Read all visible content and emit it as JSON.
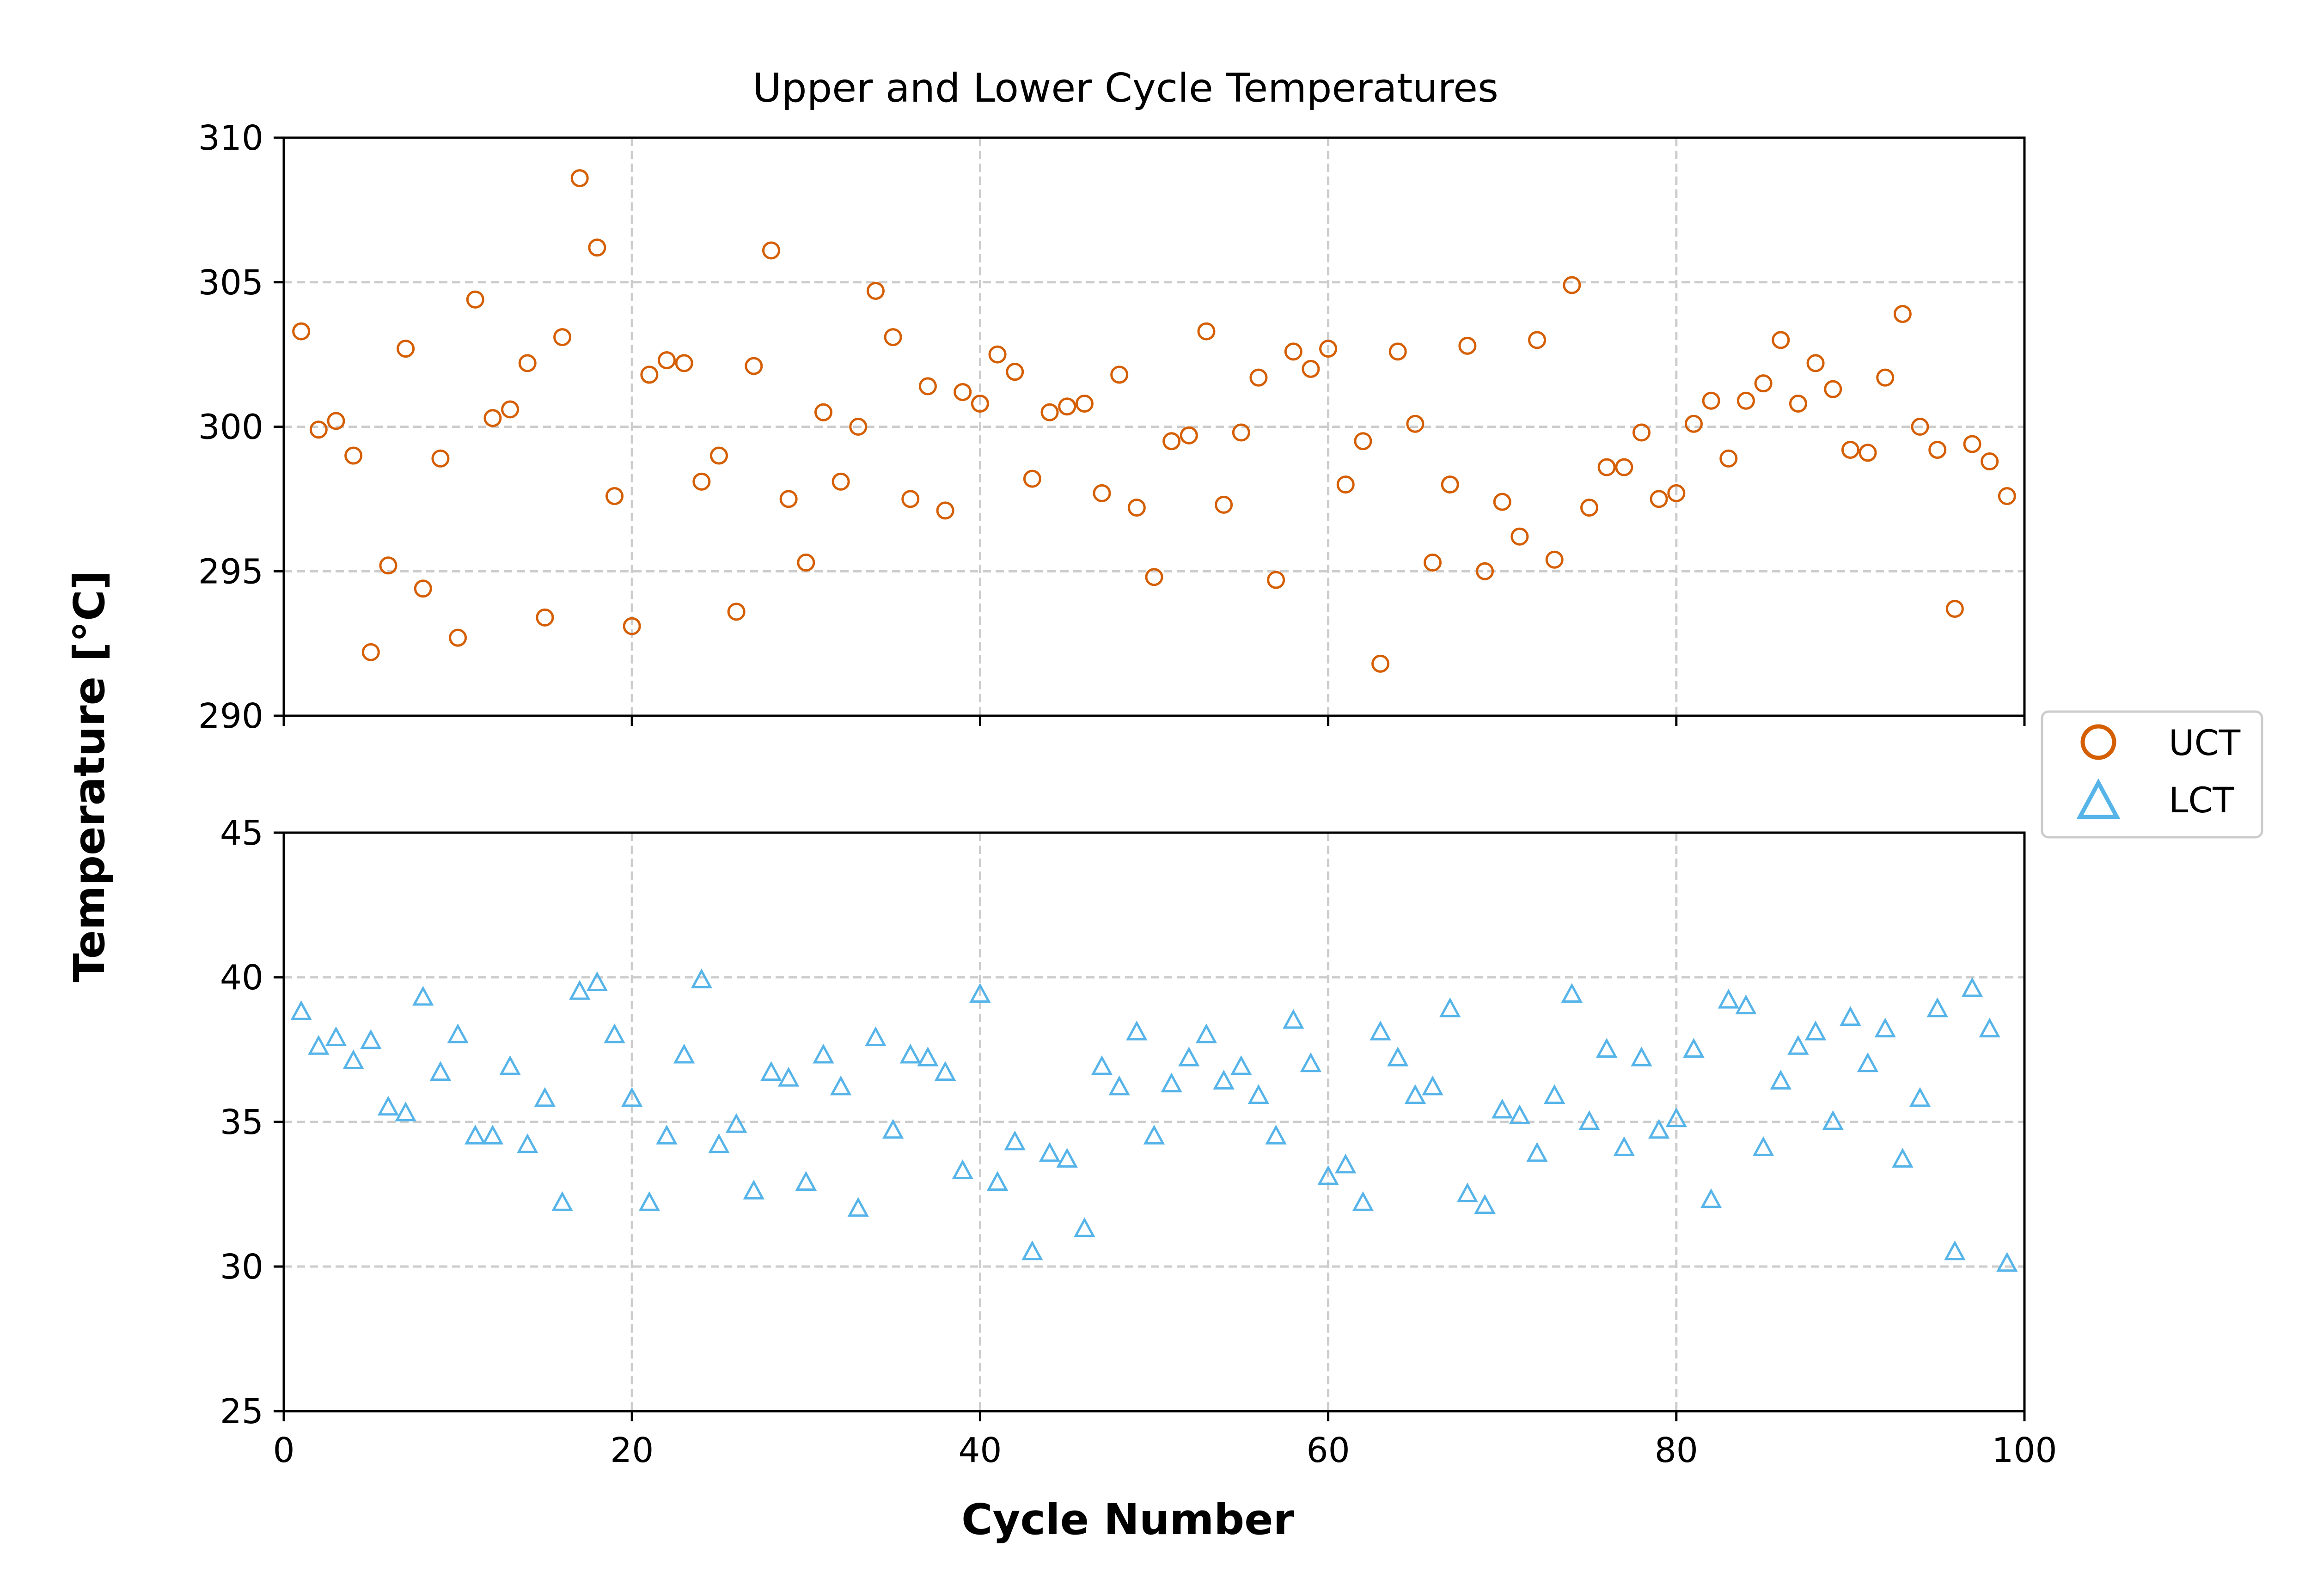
{
  "chart_data": {
    "type": "scatter",
    "title": "Upper and Lower Cycle Temperatures",
    "xlabel": "Cycle Number",
    "ylabel": "Temperature [°C]",
    "grid": true,
    "legend_position": "right",
    "xlim": [
      0,
      100
    ],
    "x_ticks": [
      "0",
      "20",
      "40",
      "60",
      "80",
      "100"
    ],
    "panels": [
      {
        "ylim": [
          290,
          310
        ],
        "y_ticks": [
          "290",
          "295",
          "300",
          "305",
          "310"
        ]
      },
      {
        "ylim": [
          25,
          45
        ],
        "y_ticks": [
          "25",
          "30",
          "35",
          "40",
          "45"
        ]
      }
    ],
    "series": [
      {
        "name": "UCT",
        "marker": "circle",
        "color": "#d55e00",
        "panel": 0,
        "x": [
          1,
          2,
          3,
          4,
          5,
          6,
          7,
          8,
          9,
          10,
          11,
          12,
          13,
          14,
          15,
          16,
          17,
          18,
          19,
          20,
          21,
          22,
          23,
          24,
          25,
          26,
          27,
          28,
          29,
          30,
          31,
          32,
          33,
          34,
          35,
          36,
          37,
          38,
          39,
          40,
          41,
          42,
          43,
          44,
          45,
          46,
          47,
          48,
          49,
          50,
          51,
          52,
          53,
          54,
          55,
          56,
          57,
          58,
          59,
          60,
          61,
          62,
          63,
          64,
          65,
          66,
          67,
          68,
          69,
          70,
          71,
          72,
          73,
          74,
          75,
          76,
          77,
          78,
          79,
          80,
          81,
          82,
          83,
          84,
          85,
          86,
          87,
          88,
          89,
          90,
          91,
          92,
          93,
          94,
          95,
          96,
          97,
          98,
          99
        ],
        "y": [
          303.3,
          299.9,
          300.2,
          299.0,
          292.2,
          295.2,
          302.7,
          294.4,
          298.9,
          292.7,
          304.4,
          300.3,
          300.6,
          302.2,
          293.4,
          303.1,
          308.6,
          306.2,
          297.6,
          293.1,
          301.8,
          302.3,
          302.2,
          298.1,
          299.0,
          293.6,
          302.1,
          306.1,
          297.5,
          295.3,
          300.5,
          298.1,
          300.0,
          304.7,
          303.1,
          297.5,
          301.4,
          297.1,
          301.2,
          300.8,
          302.5,
          301.9,
          298.2,
          300.5,
          300.7,
          300.8,
          297.7,
          301.8,
          297.2,
          294.8,
          299.5,
          299.7,
          303.3,
          297.3,
          299.8,
          301.7,
          294.7,
          302.6,
          302.0,
          302.7,
          298.0,
          299.5,
          291.8,
          302.6,
          300.1,
          295.3,
          298.0,
          302.8,
          295.0,
          297.4,
          296.2,
          303.0,
          295.4,
          304.9,
          297.2,
          298.6,
          298.6,
          299.8,
          297.5,
          297.7,
          300.1,
          300.9,
          298.9,
          300.9,
          301.5,
          303.0,
          300.8,
          302.2,
          301.3,
          299.2,
          299.1,
          301.7,
          303.9,
          300.0,
          299.2,
          293.7,
          299.4,
          298.8,
          297.6
        ]
      },
      {
        "name": "LCT",
        "marker": "triangle",
        "color": "#56b4e9",
        "panel": 1,
        "x": [
          1,
          2,
          3,
          4,
          5,
          6,
          7,
          8,
          9,
          10,
          11,
          12,
          13,
          14,
          15,
          16,
          17,
          18,
          19,
          20,
          21,
          22,
          23,
          24,
          25,
          26,
          27,
          28,
          29,
          30,
          31,
          32,
          33,
          34,
          35,
          36,
          37,
          38,
          39,
          40,
          41,
          42,
          43,
          44,
          45,
          46,
          47,
          48,
          49,
          50,
          51,
          52,
          53,
          54,
          55,
          56,
          57,
          58,
          59,
          60,
          61,
          62,
          63,
          64,
          65,
          66,
          67,
          68,
          69,
          70,
          71,
          72,
          73,
          74,
          75,
          76,
          77,
          78,
          79,
          80,
          81,
          82,
          83,
          84,
          85,
          86,
          87,
          88,
          89,
          90,
          91,
          92,
          93,
          94,
          95,
          96,
          97,
          98,
          99
        ],
        "y": [
          38.8,
          37.6,
          37.9,
          37.1,
          37.8,
          35.5,
          35.3,
          39.3,
          36.7,
          38.0,
          34.5,
          34.5,
          36.9,
          34.2,
          35.8,
          32.2,
          39.5,
          39.8,
          38.0,
          35.8,
          32.2,
          34.5,
          37.3,
          39.9,
          34.2,
          34.9,
          32.6,
          36.7,
          36.5,
          32.9,
          37.3,
          36.2,
          32.0,
          37.9,
          34.7,
          37.3,
          37.2,
          36.7,
          33.3,
          39.4,
          32.9,
          34.3,
          30.5,
          33.9,
          33.7,
          31.3,
          36.9,
          36.2,
          38.1,
          34.5,
          36.3,
          37.2,
          38.0,
          36.4,
          36.9,
          35.9,
          34.5,
          38.5,
          37.0,
          33.1,
          33.5,
          32.2,
          38.1,
          37.2,
          35.9,
          36.2,
          38.9,
          32.5,
          32.1,
          35.4,
          35.2,
          33.9,
          35.9,
          39.4,
          35.0,
          37.5,
          34.1,
          37.2,
          34.7,
          35.1,
          37.5,
          32.3,
          39.2,
          39.0,
          34.1,
          36.4,
          37.6,
          38.1,
          35.0,
          38.6,
          37.0,
          38.2,
          33.7,
          35.8,
          38.9,
          30.5,
          39.6,
          38.2,
          30.1
        ]
      }
    ]
  }
}
